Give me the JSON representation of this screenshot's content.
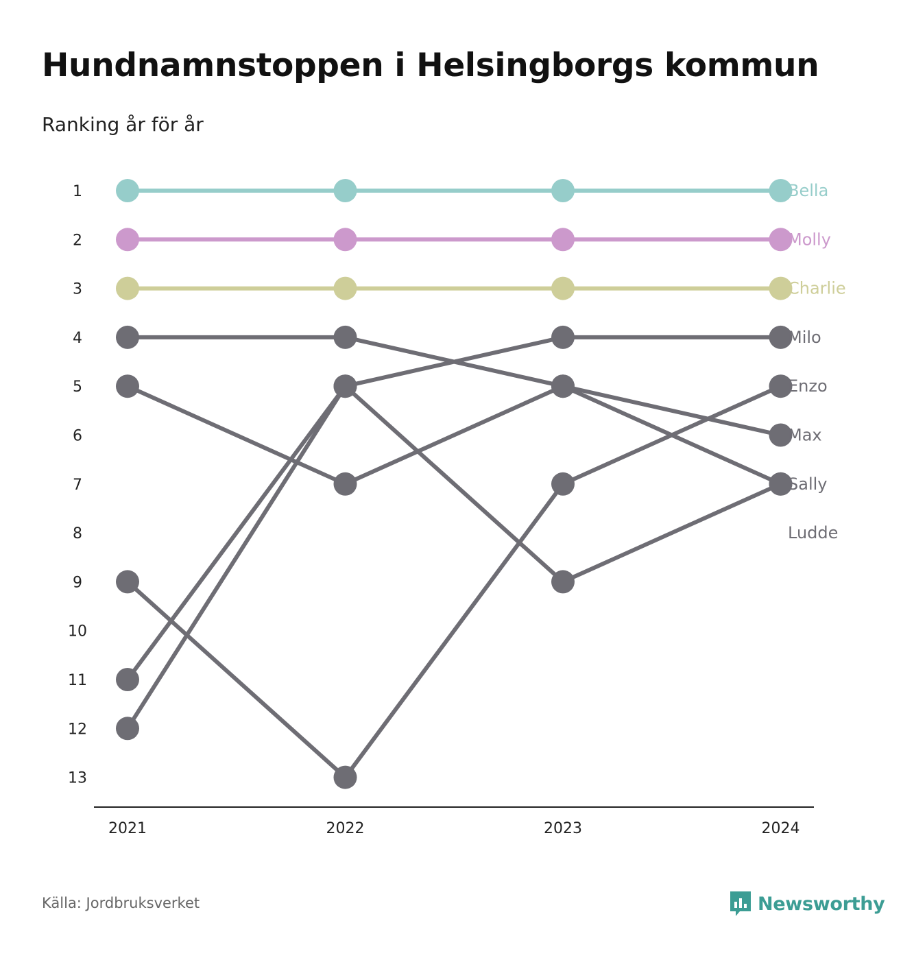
{
  "header": {
    "title": "Hundnamnstoppen i Helsingborgs kommun",
    "subtitle": "Ranking år för år"
  },
  "footer": {
    "source": "Källa: Jordbruksverket",
    "brand": "Newsworthy",
    "brand_icon": "bar-chart-speech-bubble-icon"
  },
  "colors": {
    "bella": "#96cdca",
    "molly": "#cc99cc",
    "charlie": "#cece99",
    "other": "#6e6d74",
    "brand": "#3c9d94"
  },
  "chart_data": {
    "type": "line",
    "subtype": "bump",
    "x": [
      "2021",
      "2022",
      "2023",
      "2024"
    ],
    "y_ticks": [
      1,
      2,
      3,
      4,
      5,
      6,
      7,
      8,
      9,
      10,
      11,
      12,
      13
    ],
    "y_reversed": true,
    "series": [
      {
        "name": "Bella",
        "color": "#96cdca",
        "values": [
          1,
          1,
          1,
          1
        ]
      },
      {
        "name": "Molly",
        "color": "#cc99cc",
        "values": [
          2,
          2,
          2,
          2
        ]
      },
      {
        "name": "Charlie",
        "color": "#cece99",
        "values": [
          3,
          3,
          3,
          3
        ]
      },
      {
        "name": "Milo",
        "color": "#6e6d74",
        "values": [
          11,
          5,
          4,
          4
        ]
      },
      {
        "name": "Enzo",
        "color": "#6e6d74",
        "values": [
          9,
          13,
          7,
          5
        ]
      },
      {
        "name": "Max",
        "color": "#6e6d74",
        "values": [
          4,
          4,
          5,
          6
        ]
      },
      {
        "name": "Sally",
        "color": "#6e6d74",
        "values": [
          5,
          7,
          5,
          7
        ]
      },
      {
        "name": "Ludde",
        "color": "#6e6d74",
        "values": [
          12,
          5,
          9,
          7
        ]
      }
    ],
    "label_ranks": [
      1,
      2,
      3,
      4,
      5,
      6,
      7,
      8
    ],
    "grid": false,
    "legend": "direct labels at right"
  }
}
